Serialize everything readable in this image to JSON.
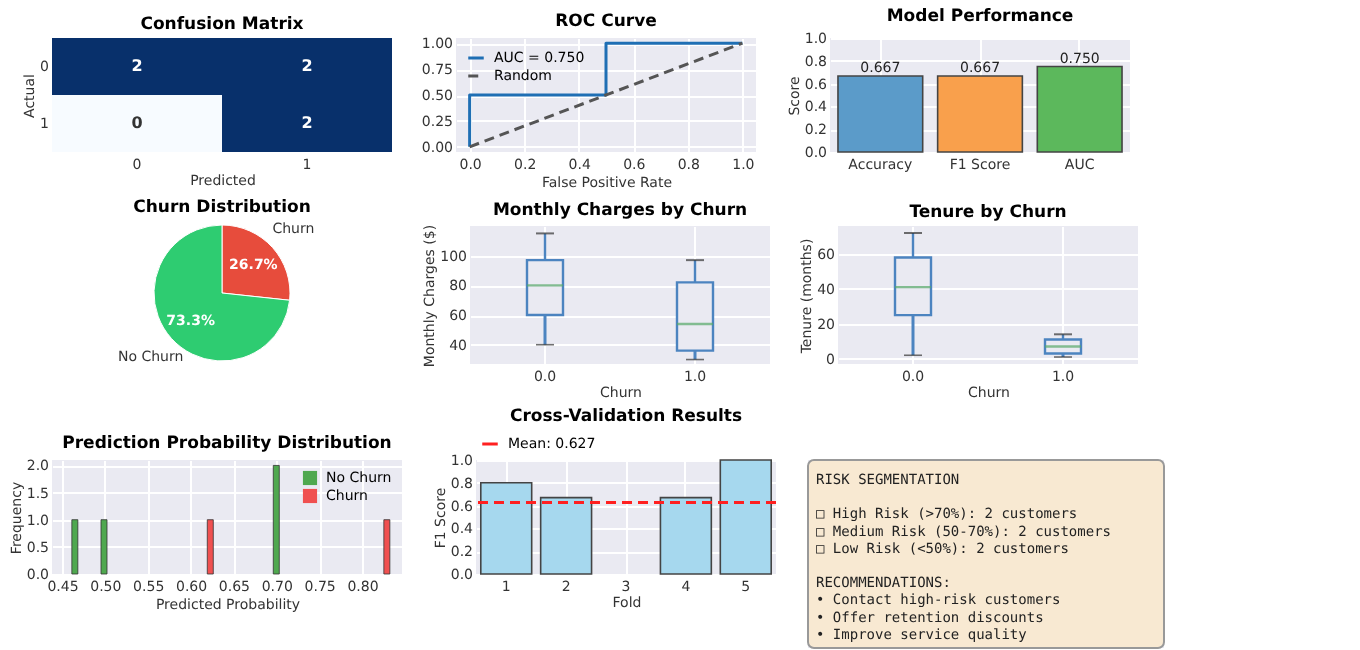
{
  "chart_data": [
    {
      "type": "heatmap",
      "title": "Confusion Matrix",
      "xlabel": "Predicted",
      "ylabel": "Actual",
      "categories": [
        "0",
        "1"
      ],
      "y_categories": [
        "0",
        "1"
      ],
      "cells": [
        [
          2,
          2
        ],
        [
          0,
          2
        ]
      ],
      "colors": [
        "#f7fbff",
        "#08306b"
      ],
      "data_labels": true
    },
    {
      "type": "line",
      "title": "ROC Curve",
      "xlabel": "False Positive Rate",
      "xlim": [
        -0.05,
        1.05
      ],
      "xticks": [
        {
          "value": 0,
          "label": "0.0"
        },
        0.2,
        0.4,
        0.6,
        0.8,
        {
          "value": 1,
          "label": "1.0"
        }
      ],
      "ylim": [
        -0.05,
        1.05
      ],
      "yticks": [
        {
          "value": 0,
          "label": "0.00"
        },
        0.25,
        {
          "value": 0.5,
          "label": "0.50"
        },
        0.75,
        {
          "value": 1,
          "label": "1.00"
        }
      ],
      "grid": true,
      "legend": "top left",
      "series": [
        {
          "name": "AUC = 0.750",
          "color": "#1f6fb4",
          "line_style": "solid",
          "x": [
            0,
            0,
            0.5,
            0.5,
            1
          ],
          "values": [
            0,
            0.5,
            0.5,
            1,
            1
          ]
        },
        {
          "name": "Random",
          "color": "#555555",
          "line_style": "dashed",
          "x": [
            0,
            1
          ],
          "values": [
            0,
            1
          ]
        }
      ]
    },
    {
      "type": "bar",
      "title": "Model Performance",
      "ylabel": "Score",
      "categories": [
        "Accuracy",
        "F1 Score",
        "AUC"
      ],
      "values": [
        0.667,
        0.667,
        0.75
      ],
      "value_labels": [
        "0.667",
        "0.667",
        "0.750"
      ],
      "colors": [
        "#5b9bc9",
        "#f9a04c",
        "#5cb85c"
      ],
      "ylim": [
        0,
        1
      ],
      "yticks": [
        {
          "value": 0,
          "label": "0.0"
        },
        0.2,
        0.4,
        0.6,
        0.8,
        {
          "value": 1,
          "label": "1.0"
        }
      ],
      "grid": true
    },
    {
      "type": "pie",
      "title": "Churn Distribution",
      "categories": [
        "Churn",
        "No Churn"
      ],
      "values": [
        26.7,
        73.3
      ],
      "value_labels": [
        "26.7%",
        "73.3%"
      ],
      "colors": [
        "#e74c3c",
        "#2ecc71"
      ]
    },
    {
      "type": "box",
      "title": "Monthly Charges by Churn",
      "xlabel": "Churn",
      "ylabel": "Monthly Charges ($)",
      "categories": [
        "0.0",
        "1.0"
      ],
      "color": "#4c84c0",
      "ylim": [
        27,
        120
      ],
      "yticks": [
        40,
        60,
        80,
        100
      ],
      "grid": true,
      "boxes": [
        {
          "low": 40,
          "q1": 60,
          "median": 80,
          "q3": 97,
          "high": 115
        },
        {
          "low": 30,
          "q1": 36,
          "median": 54,
          "q3": 82,
          "high": 97
        }
      ]
    },
    {
      "type": "box",
      "title": "Tenure by Churn",
      "xlabel": "Churn",
      "ylabel": "Tenure (months)",
      "categories": [
        "0.0",
        "1.0"
      ],
      "color": "#4c84c0",
      "ylim": [
        -3,
        76
      ],
      "yticks": [
        0,
        20,
        40,
        60
      ],
      "grid": true,
      "boxes": [
        {
          "low": 2,
          "q1": 25,
          "median": 41,
          "q3": 58,
          "high": 72
        },
        {
          "low": 1,
          "q1": 3,
          "median": 7,
          "q3": 11,
          "high": 14
        }
      ]
    },
    {
      "type": "bar",
      "title": "Prediction Probability Distribution",
      "xlabel": "Predicted Probability",
      "ylabel": "Frequency",
      "xlim": [
        0.45,
        0.835
      ],
      "xticks": [
        0.45,
        {
          "value": 0.5,
          "label": "0.50"
        },
        0.55,
        {
          "value": 0.6,
          "label": "0.60"
        },
        0.65,
        {
          "value": 0.7,
          "label": "0.70"
        },
        0.75,
        {
          "value": 0.8,
          "label": "0.80"
        }
      ],
      "ylim": [
        0,
        2.1
      ],
      "yticks": [
        {
          "value": 0,
          "label": "0.0"
        },
        0.5,
        {
          "value": 1,
          "label": "1.0"
        },
        1.5,
        {
          "value": 2,
          "label": "2.0"
        }
      ],
      "grid": true,
      "legend": "top right",
      "series": [
        {
          "name": "No Churn",
          "color": "#4fa84f",
          "x": [
            0.465,
            0.499,
            0.7
          ],
          "values": [
            1,
            1,
            2
          ]
        },
        {
          "name": "Churn",
          "color": "#f05050",
          "x": [
            0.623,
            0.829
          ],
          "values": [
            1,
            1
          ]
        }
      ]
    },
    {
      "type": "bar",
      "title": "Cross-Validation Results",
      "xlabel": "Fold",
      "ylabel": "F1 Score",
      "categories": [
        "1",
        "2",
        "3",
        "4",
        "5"
      ],
      "values": [
        0.8,
        0.67,
        0,
        0.67,
        1.0
      ],
      "color": "#a6d8ee",
      "ylim": [
        0,
        1
      ],
      "yticks": [
        {
          "value": 0,
          "label": "0.0"
        },
        0.2,
        0.4,
        0.6,
        0.8,
        {
          "value": 1,
          "label": "1.0"
        }
      ],
      "grid": true,
      "legend": "top",
      "ref_lines": [
        {
          "axis": "y",
          "value": 0.627,
          "label": "Mean: 0.627",
          "color": "#ff2020",
          "line_style": "dashed"
        }
      ]
    },
    {
      "type": "other",
      "annotations": [
        "RISK SEGMENTATION",
        "□ High Risk (>70%): 2 customers\n□ Medium Risk (50-70%): 2 customers\n□ Low Risk (<50%): 2 customers",
        "RECOMMENDATIONS:\n• Contact high-risk customers\n• Offer retention discounts\n• Improve service quality"
      ]
    }
  ]
}
